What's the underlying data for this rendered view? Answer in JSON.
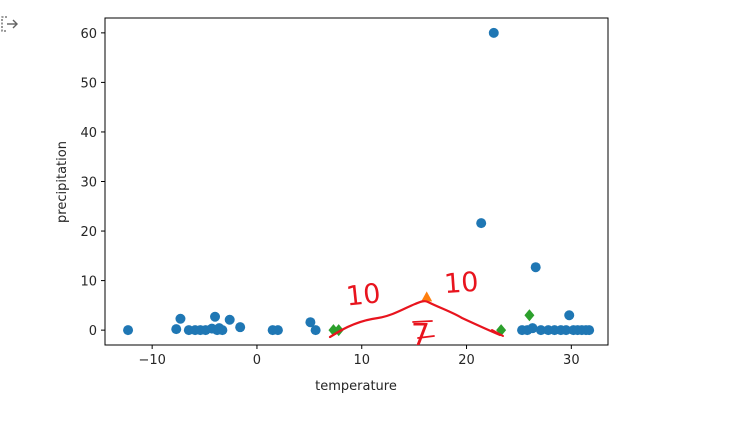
{
  "output_icon": "output-arrow-icon",
  "chart_data": {
    "type": "scatter",
    "xlabel": "temperature",
    "ylabel": "precipitation",
    "xlim": [
      -14.5,
      33.5
    ],
    "ylim": [
      -3,
      63
    ],
    "xticks": [
      -10,
      0,
      10,
      20,
      30
    ],
    "yticks": [
      0,
      10,
      20,
      30,
      40,
      50,
      60
    ],
    "grid": false,
    "series": [
      {
        "marker": "circle",
        "color": "#1f77b4",
        "points": [
          [
            -12.3,
            0
          ],
          [
            -7.7,
            0.2
          ],
          [
            -7.3,
            2.3
          ],
          [
            -6.5,
            0
          ],
          [
            -5.9,
            0
          ],
          [
            -5.4,
            0
          ],
          [
            -4.9,
            0
          ],
          [
            -4.3,
            0.3
          ],
          [
            -4.0,
            2.7
          ],
          [
            -3.8,
            0
          ],
          [
            -3.6,
            0.4
          ],
          [
            -3.3,
            0
          ],
          [
            -2.6,
            2.1
          ],
          [
            -1.6,
            0.6
          ],
          [
            1.5,
            0
          ],
          [
            2.0,
            0
          ],
          [
            5.1,
            1.6
          ],
          [
            5.6,
            0
          ],
          [
            21.4,
            21.6
          ],
          [
            22.6,
            60.0
          ],
          [
            25.3,
            0
          ],
          [
            25.8,
            0
          ],
          [
            26.3,
            0.4
          ],
          [
            26.6,
            12.7
          ],
          [
            27.1,
            0
          ],
          [
            27.8,
            0
          ],
          [
            28.4,
            0
          ],
          [
            29.0,
            0
          ],
          [
            29.5,
            0
          ],
          [
            29.8,
            3.0
          ],
          [
            30.2,
            0
          ],
          [
            30.6,
            0
          ],
          [
            31.0,
            0
          ],
          [
            31.4,
            0
          ],
          [
            31.7,
            0
          ]
        ]
      },
      {
        "marker": "triangle",
        "color": "#ff7f0e",
        "points": [
          [
            16.2,
            6.6
          ]
        ]
      },
      {
        "marker": "diamond",
        "color": "#2ca02c",
        "points": [
          [
            7.3,
            0
          ],
          [
            7.8,
            0
          ],
          [
            23.3,
            0
          ],
          [
            26.0,
            3.0
          ]
        ]
      }
    ],
    "annotations": [
      {
        "text": "10",
        "kind": "handwritten",
        "color": "#e8141e"
      },
      {
        "text": "10",
        "kind": "handwritten",
        "color": "#e8141e"
      },
      {
        "text": "7",
        "kind": "handwritten",
        "color": "#e8141e"
      }
    ]
  }
}
